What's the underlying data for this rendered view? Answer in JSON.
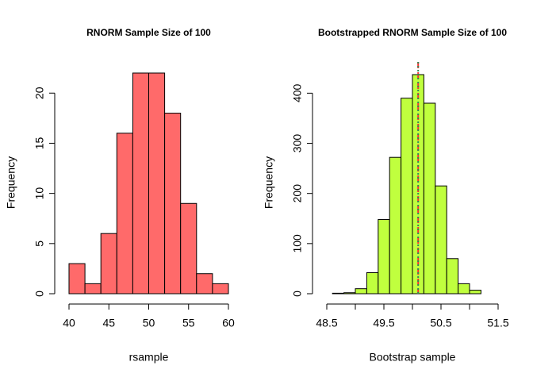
{
  "chart_data": [
    {
      "type": "histogram",
      "title": "RNORM Sample Size of 100",
      "xlabel": "rsample",
      "ylabel": "Frequency",
      "bins": [
        40,
        42,
        44,
        46,
        48,
        50,
        52,
        54,
        56,
        58,
        60
      ],
      "values": [
        3,
        1,
        6,
        16,
        22,
        22,
        18,
        9,
        2,
        1
      ],
      "color": "#ff6a6a",
      "xlim": [
        40,
        60
      ],
      "xticks": [
        40,
        45,
        50,
        55,
        60
      ],
      "ylim": [
        0,
        22
      ],
      "yticks": [
        0,
        5,
        10,
        15,
        20
      ]
    },
    {
      "type": "histogram",
      "title": "Bootstrapped RNORM Sample Size of 100",
      "xlabel": "Bootstrap sample",
      "ylabel": "Frequency",
      "bins": [
        48.6,
        48.8,
        49.0,
        49.2,
        49.4,
        49.6,
        49.8,
        50.0,
        50.2,
        50.4,
        50.6,
        50.8,
        51.0,
        51.2
      ],
      "values": [
        1,
        2,
        10,
        42,
        148,
        272,
        390,
        437,
        380,
        215,
        70,
        20,
        7
      ],
      "color": "#c0ff3e",
      "xlim": [
        48.5,
        51.5
      ],
      "xticks": [
        48.5,
        49.5,
        50.5,
        51.5
      ],
      "minor_xticks": [
        49,
        50,
        51
      ],
      "ylim": [
        0,
        437
      ],
      "yticks": [
        0,
        100,
        200,
        300,
        400
      ],
      "vlines": [
        {
          "value": 50.1,
          "color": "#ff3030",
          "dash": "8,5"
        },
        {
          "value": 50.1,
          "color": "#2e8b57",
          "dash": "2,3"
        }
      ]
    }
  ]
}
